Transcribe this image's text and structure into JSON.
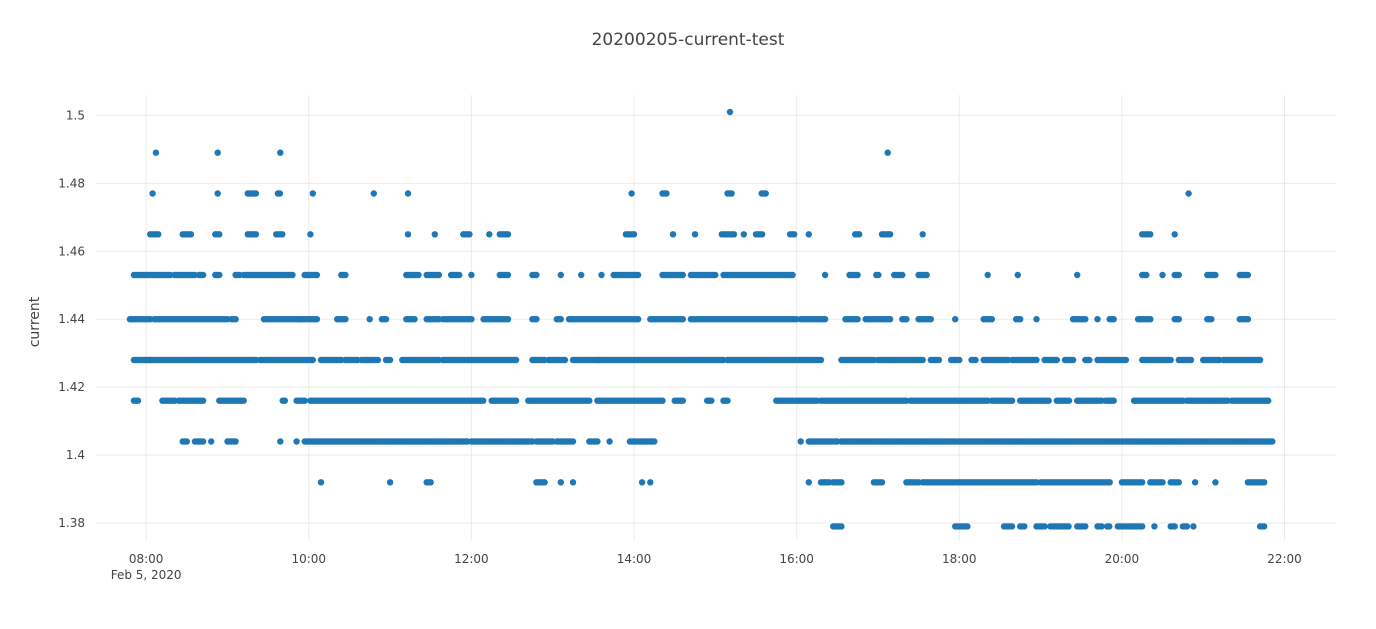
{
  "chart_data": {
    "type": "scatter",
    "title": "20200205-current-test",
    "xlabel": "",
    "ylabel": "current",
    "x_tick_labels": [
      "08:00",
      "10:00",
      "12:00",
      "14:00",
      "16:00",
      "18:00",
      "20:00",
      "22:00"
    ],
    "x_tick_sublabel": "Feb 5, 2020",
    "x_ticks_hours": [
      8,
      10,
      12,
      14,
      16,
      18,
      20,
      22
    ],
    "y_tick_labels": [
      "1.38",
      "1.4",
      "1.42",
      "1.44",
      "1.46",
      "1.48",
      "1.5"
    ],
    "y_ticks": [
      1.38,
      1.4,
      1.42,
      1.44,
      1.46,
      1.48,
      1.5
    ],
    "xlim": [
      "2020-02-05 07:23",
      "2020-02-05 22:38"
    ],
    "ylim": [
      1.375,
      1.506
    ],
    "grid": true,
    "marker_color": "#1f77b4",
    "series": [
      {
        "values_by_level": [
          {
            "y": 1.501,
            "hours": [
              [
                15.18,
                15.18
              ]
            ]
          },
          {
            "y": 1.489,
            "hours": [
              [
                8.12,
                8.12
              ],
              [
                8.88,
                8.88
              ],
              [
                9.65,
                9.65
              ],
              [
                17.12,
                17.12
              ]
            ]
          },
          {
            "y": 1.477,
            "hours": [
              [
                8.08,
                8.08
              ],
              [
                8.88,
                8.9
              ],
              [
                9.25,
                9.35
              ],
              [
                9.62,
                9.65
              ],
              [
                10.05,
                10.05
              ],
              [
                10.8,
                10.8
              ],
              [
                11.22,
                11.22
              ],
              [
                13.97,
                13.97
              ],
              [
                14.35,
                14.42
              ],
              [
                15.15,
                15.2
              ],
              [
                15.57,
                15.62
              ],
              [
                20.82,
                20.82
              ]
            ]
          },
          {
            "y": 1.465,
            "hours": [
              [
                8.05,
                8.15
              ],
              [
                8.45,
                8.55
              ],
              [
                8.85,
                8.92
              ],
              [
                9.25,
                9.35
              ],
              [
                9.6,
                9.68
              ],
              [
                10.02,
                10.02
              ],
              [
                11.22,
                11.22
              ],
              [
                11.55,
                11.55
              ],
              [
                11.9,
                11.98
              ],
              [
                12.22,
                12.22
              ],
              [
                12.35,
                12.45
              ],
              [
                13.9,
                14.0
              ],
              [
                14.48,
                14.48
              ],
              [
                14.75,
                14.75
              ],
              [
                15.08,
                15.25
              ],
              [
                15.35,
                15.35
              ],
              [
                15.5,
                15.58
              ],
              [
                15.92,
                15.98
              ],
              [
                16.15,
                16.15
              ],
              [
                16.72,
                16.78
              ],
              [
                17.05,
                17.15
              ],
              [
                17.55,
                17.55
              ],
              [
                20.25,
                20.35
              ],
              [
                20.65,
                20.65
              ]
            ]
          },
          {
            "y": 1.453,
            "hours": [
              [
                7.85,
                8.3
              ],
              [
                8.35,
                8.6
              ],
              [
                8.65,
                8.7
              ],
              [
                8.85,
                8.92
              ],
              [
                9.1,
                9.15
              ],
              [
                9.2,
                9.8
              ],
              [
                9.95,
                10.1
              ],
              [
                10.4,
                10.45
              ],
              [
                11.2,
                11.35
              ],
              [
                11.45,
                11.6
              ],
              [
                11.75,
                11.85
              ],
              [
                12.0,
                12.0
              ],
              [
                12.35,
                12.45
              ],
              [
                12.75,
                12.8
              ],
              [
                13.1,
                13.1
              ],
              [
                13.35,
                13.35
              ],
              [
                13.6,
                13.6
              ],
              [
                13.75,
                14.05
              ],
              [
                14.35,
                14.6
              ],
              [
                14.7,
                15.0
              ],
              [
                15.1,
                15.95
              ],
              [
                16.35,
                16.35
              ],
              [
                16.65,
                16.75
              ],
              [
                16.98,
                17.02
              ],
              [
                17.2,
                17.3
              ],
              [
                17.5,
                17.6
              ],
              [
                18.35,
                18.35
              ],
              [
                18.72,
                18.72
              ],
              [
                19.45,
                19.45
              ],
              [
                20.25,
                20.3
              ],
              [
                20.5,
                20.5
              ],
              [
                20.65,
                20.7
              ],
              [
                21.05,
                21.15
              ],
              [
                21.45,
                21.55
              ]
            ]
          },
          {
            "y": 1.44,
            "hours": [
              [
                7.8,
                8.05
              ],
              [
                8.1,
                9.0
              ],
              [
                9.05,
                9.1
              ],
              [
                9.45,
                9.9
              ],
              [
                9.9,
                10.1
              ],
              [
                10.35,
                10.45
              ],
              [
                10.75,
                10.75
              ],
              [
                10.9,
                10.95
              ],
              [
                11.2,
                11.32
              ],
              [
                11.45,
                11.6
              ],
              [
                11.65,
                12.0
              ],
              [
                12.15,
                12.45
              ],
              [
                12.75,
                12.8
              ],
              [
                13.1,
                13.05
              ],
              [
                13.2,
                14.05
              ],
              [
                14.2,
                14.6
              ],
              [
                14.7,
                16.0
              ],
              [
                16.05,
                16.35
              ],
              [
                16.6,
                16.75
              ],
              [
                16.85,
                17.15
              ],
              [
                17.3,
                17.35
              ],
              [
                17.5,
                17.65
              ],
              [
                17.95,
                17.95
              ],
              [
                18.3,
                18.4
              ],
              [
                18.7,
                18.75
              ],
              [
                18.95,
                18.95
              ],
              [
                19.4,
                19.55
              ],
              [
                19.7,
                19.7
              ],
              [
                19.85,
                19.92
              ],
              [
                20.2,
                20.35
              ],
              [
                20.65,
                20.7
              ],
              [
                21.05,
                21.12
              ],
              [
                21.45,
                21.55
              ]
            ]
          },
          {
            "y": 1.428,
            "hours": [
              [
                7.85,
                8.05
              ],
              [
                8.05,
                9.35
              ],
              [
                9.4,
                10.05
              ],
              [
                10.15,
                10.4
              ],
              [
                10.45,
                10.6
              ],
              [
                10.65,
                10.85
              ],
              [
                10.95,
                11.0
              ],
              [
                11.15,
                11.6
              ],
              [
                11.65,
                12.55
              ],
              [
                12.75,
                12.9
              ],
              [
                12.95,
                13.15
              ],
              [
                13.25,
                13.55
              ],
              [
                13.55,
                15.1
              ],
              [
                15.15,
                16.3
              ],
              [
                16.55,
                16.95
              ],
              [
                17.0,
                17.55
              ],
              [
                17.65,
                17.75
              ],
              [
                17.9,
                18.0
              ],
              [
                18.15,
                18.2
              ],
              [
                18.3,
                18.6
              ],
              [
                18.65,
                18.95
              ],
              [
                19.05,
                19.2
              ],
              [
                19.3,
                19.4
              ],
              [
                19.55,
                19.6
              ],
              [
                19.7,
                20.05
              ],
              [
                20.25,
                20.6
              ],
              [
                20.7,
                20.85
              ],
              [
                21.0,
                21.2
              ],
              [
                21.25,
                21.7
              ]
            ]
          },
          {
            "y": 1.416,
            "hours": [
              [
                7.85,
                7.9
              ],
              [
                8.2,
                8.35
              ],
              [
                8.4,
                8.7
              ],
              [
                8.9,
                9.2
              ],
              [
                9.68,
                9.72
              ],
              [
                9.85,
                9.95
              ],
              [
                10.02,
                12.15
              ],
              [
                12.25,
                12.55
              ],
              [
                12.7,
                13.45
              ],
              [
                13.55,
                14.35
              ],
              [
                14.5,
                14.6
              ],
              [
                14.9,
                14.95
              ],
              [
                15.1,
                15.15
              ],
              [
                15.75,
                16.25
              ],
              [
                16.3,
                17.35
              ],
              [
                17.4,
                18.35
              ],
              [
                18.4,
                18.65
              ],
              [
                18.75,
                19.1
              ],
              [
                19.2,
                19.35
              ],
              [
                19.45,
                19.75
              ],
              [
                19.8,
                19.92
              ],
              [
                20.15,
                20.75
              ],
              [
                20.8,
                21.3
              ],
              [
                21.35,
                21.8
              ]
            ]
          },
          {
            "y": 1.404,
            "hours": [
              [
                8.45,
                8.5
              ],
              [
                8.6,
                8.7
              ],
              [
                8.8,
                8.8
              ],
              [
                9.0,
                9.1
              ],
              [
                9.65,
                9.65
              ],
              [
                9.85,
                9.85
              ],
              [
                9.95,
                11.95
              ],
              [
                12.0,
                12.75
              ],
              [
                12.8,
                13.0
              ],
              [
                13.05,
                13.25
              ],
              [
                13.45,
                13.55
              ],
              [
                13.7,
                13.7
              ],
              [
                13.95,
                14.25
              ],
              [
                16.05,
                16.05
              ],
              [
                16.15,
                16.5
              ],
              [
                16.55,
                21.85
              ]
            ]
          },
          {
            "y": 1.392,
            "hours": [
              [
                10.15,
                10.15
              ],
              [
                11.0,
                11.0
              ],
              [
                11.45,
                11.52
              ],
              [
                12.8,
                12.9
              ],
              [
                13.1,
                13.1
              ],
              [
                13.25,
                13.25
              ],
              [
                14.1,
                14.1
              ],
              [
                14.2,
                14.2
              ],
              [
                16.15,
                16.15
              ],
              [
                16.3,
                16.4
              ],
              [
                16.45,
                16.55
              ],
              [
                16.95,
                17.05
              ],
              [
                17.35,
                17.5
              ],
              [
                17.55,
                18.95
              ],
              [
                19.0,
                19.85
              ],
              [
                20.0,
                20.25
              ],
              [
                20.35,
                20.5
              ],
              [
                20.6,
                20.7
              ],
              [
                20.9,
                20.9
              ],
              [
                21.15,
                21.15
              ],
              [
                21.55,
                21.75
              ]
            ]
          },
          {
            "y": 1.379,
            "hours": [
              [
                16.45,
                16.55
              ],
              [
                17.95,
                18.1
              ],
              [
                18.55,
                18.65
              ],
              [
                18.75,
                18.8
              ],
              [
                18.95,
                19.05
              ],
              [
                19.12,
                19.35
              ],
              [
                19.45,
                19.55
              ],
              [
                19.7,
                19.75
              ],
              [
                19.82,
                19.85
              ],
              [
                19.95,
                20.25
              ],
              [
                20.4,
                20.4
              ],
              [
                20.6,
                20.65
              ],
              [
                20.75,
                20.82
              ],
              [
                20.88,
                20.9
              ],
              [
                21.7,
                21.75
              ]
            ]
          }
        ]
      }
    ]
  }
}
